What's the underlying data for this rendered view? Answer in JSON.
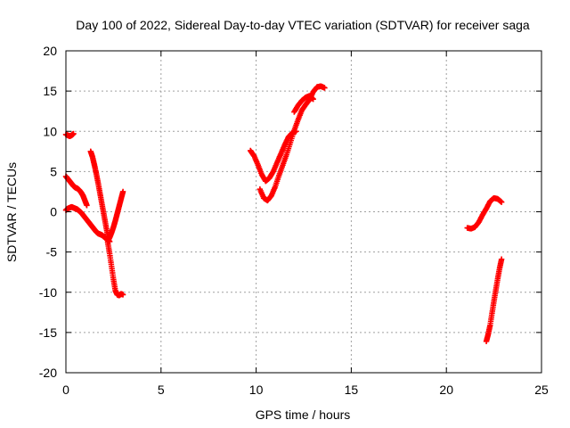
{
  "chart_data": {
    "type": "scatter",
    "title": "Day 100 of 2022, Sidereal Day-to-day VTEC variation (SDTVAR) for receiver saga",
    "xlabel": "GPS time / hours",
    "ylabel": "SDTVAR / TECUs",
    "xlim": [
      0,
      25
    ],
    "ylim": [
      -20,
      20
    ],
    "xticks": [
      0,
      5,
      10,
      15,
      20,
      25
    ],
    "xtick_labels": [
      "0",
      "5",
      "10",
      "15",
      "20",
      "25"
    ],
    "yticks": [
      -20,
      -15,
      -10,
      -5,
      0,
      5,
      10,
      15,
      20
    ],
    "ytick_labels": [
      "-20",
      "-15",
      "-10",
      "-5",
      "0",
      "5",
      "10",
      "15",
      "20"
    ],
    "grid": true,
    "legend": "none",
    "marker": "plus",
    "color": "#ff0000",
    "series": [
      {
        "x": [
          0.0,
          0.1,
          0.2,
          0.3,
          0.4
        ],
        "y": [
          9.6,
          9.5,
          9.4,
          9.5,
          9.7
        ]
      },
      {
        "x": [
          0.0,
          0.1,
          0.2,
          0.3,
          0.4,
          0.5,
          0.6,
          0.7,
          0.8,
          0.9,
          1.0,
          1.1
        ],
        "y": [
          4.4,
          4.1,
          3.8,
          3.5,
          3.2,
          3.0,
          2.9,
          2.7,
          2.4,
          2.0,
          1.4,
          0.8
        ]
      },
      {
        "x": [
          0.0,
          0.1,
          0.2,
          0.3,
          0.4,
          0.5,
          0.6,
          0.7,
          0.8,
          0.9,
          1.0,
          1.1,
          1.2,
          1.3,
          1.4,
          1.5,
          1.6,
          1.7,
          1.8,
          1.9,
          2.0,
          2.1,
          2.2,
          2.3
        ],
        "y": [
          0.2,
          0.4,
          0.5,
          0.6,
          0.5,
          0.4,
          0.3,
          0.1,
          -0.1,
          -0.4,
          -0.7,
          -1.0,
          -1.3,
          -1.6,
          -1.9,
          -2.2,
          -2.5,
          -2.7,
          -2.8,
          -2.9,
          -3.1,
          -3.3,
          -3.5,
          -3.7
        ]
      },
      {
        "x": [
          1.3,
          1.4,
          1.5,
          1.6,
          1.7,
          1.8,
          1.9,
          2.0,
          2.1,
          2.2
        ],
        "y": [
          7.5,
          6.8,
          5.8,
          4.7,
          3.5,
          2.2,
          0.9,
          -0.4,
          -1.7,
          -3.0
        ]
      },
      {
        "x": [
          2.2,
          2.3,
          2.4,
          2.5,
          2.6,
          2.7,
          2.8,
          2.9,
          3.0
        ],
        "y": [
          -3.8,
          -5.2,
          -6.8,
          -8.4,
          -9.8,
          -10.3,
          -10.4,
          -10.2,
          -10.3
        ]
      },
      {
        "x": [
          2.2,
          2.3,
          2.4,
          2.5,
          2.6,
          2.7,
          2.8,
          2.9,
          3.0
        ],
        "y": [
          -3.6,
          -3.2,
          -2.6,
          -1.9,
          -1.1,
          -0.2,
          0.7,
          1.6,
          2.5
        ]
      },
      {
        "x": [
          9.7,
          9.9,
          10.1,
          10.3,
          10.5,
          10.7,
          10.9,
          11.1,
          11.3,
          11.5,
          11.7,
          11.9,
          12.1
        ],
        "y": [
          7.6,
          6.9,
          5.8,
          4.6,
          3.8,
          4.2,
          5.0,
          6.1,
          7.2,
          8.3,
          9.3,
          9.8,
          10.0
        ]
      },
      {
        "x": [
          10.2,
          10.4,
          10.6,
          10.8,
          11.0,
          11.2,
          11.4,
          11.6,
          11.8,
          12.0,
          12.2,
          12.4,
          12.6,
          12.8,
          13.0,
          13.2,
          13.4,
          13.6
        ],
        "y": [
          2.8,
          1.7,
          1.4,
          2.0,
          3.1,
          4.5,
          5.8,
          7.1,
          8.6,
          10.1,
          11.4,
          12.6,
          13.3,
          13.9,
          14.9,
          15.5,
          15.6,
          15.4
        ]
      },
      {
        "x": [
          12.0,
          12.2,
          12.4,
          12.6,
          12.8,
          13.0
        ],
        "y": [
          12.4,
          13.2,
          13.8,
          14.2,
          14.4,
          14.0
        ]
      },
      {
        "x": [
          21.1,
          21.3,
          21.5,
          21.7,
          21.9,
          22.1,
          22.3,
          22.5,
          22.7,
          22.9
        ],
        "y": [
          -2.0,
          -2.1,
          -1.9,
          -1.3,
          -0.4,
          0.4,
          1.3,
          1.7,
          1.6,
          1.2
        ]
      },
      {
        "x": [
          22.1,
          22.2,
          22.3,
          22.4,
          22.5,
          22.6,
          22.7,
          22.8,
          22.9
        ],
        "y": [
          -16.1,
          -15.2,
          -14.1,
          -12.6,
          -11.1,
          -9.7,
          -8.3,
          -7.0,
          -5.9
        ]
      }
    ]
  }
}
